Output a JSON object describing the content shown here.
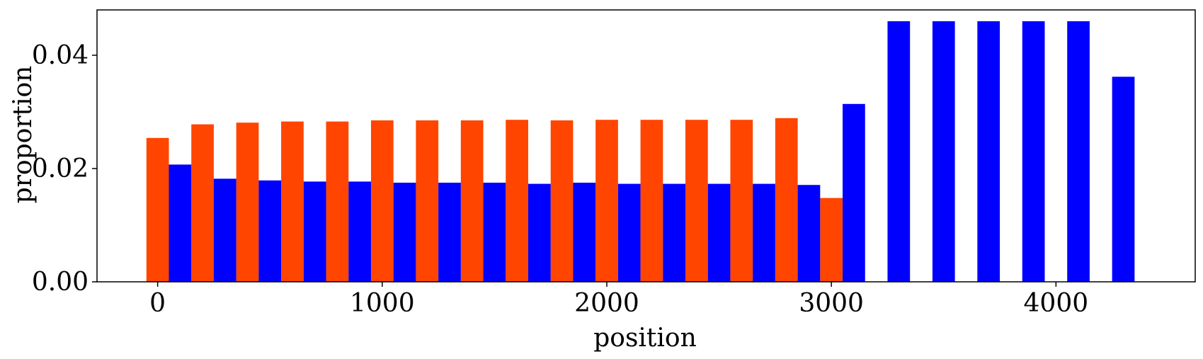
{
  "chart_data": {
    "type": "bar",
    "title": "",
    "xlabel": "position",
    "ylabel": "proportion",
    "xlim": [
      -270,
      4620
    ],
    "ylim": [
      0,
      0.048
    ],
    "xticks": [
      0,
      1000,
      2000,
      3000,
      4000
    ],
    "xtick_labels": [
      "0",
      "1000",
      "2000",
      "3000",
      "4000"
    ],
    "yticks": [
      0.0,
      0.02,
      0.04
    ],
    "ytick_labels": [
      "0.00",
      "0.02",
      "0.04"
    ],
    "grid": false,
    "bar_width": 100,
    "series": [
      {
        "color": "#ff4500",
        "x": [
          0,
          200,
          400,
          600,
          800,
          1000,
          1200,
          1400,
          1600,
          1800,
          2000,
          2200,
          2400,
          2600,
          2800,
          3000
        ],
        "values": [
          0.0254,
          0.0278,
          0.0281,
          0.0283,
          0.0283,
          0.0285,
          0.0285,
          0.0285,
          0.0286,
          0.0285,
          0.0286,
          0.0286,
          0.0286,
          0.0286,
          0.0289,
          0.0148
        ]
      },
      {
        "color": "#0000ff",
        "x": [
          100,
          300,
          500,
          700,
          900,
          1100,
          1300,
          1500,
          1700,
          1900,
          2100,
          2300,
          2500,
          2700,
          2900,
          3100,
          3300,
          3500,
          3700,
          3900,
          4100,
          4300
        ],
        "values": [
          0.0207,
          0.0182,
          0.0179,
          0.0177,
          0.0177,
          0.0175,
          0.0175,
          0.0175,
          0.0173,
          0.0175,
          0.0173,
          0.0173,
          0.0173,
          0.0173,
          0.0171,
          0.0314,
          0.046,
          0.046,
          0.046,
          0.046,
          0.046,
          0.0362
        ]
      }
    ]
  }
}
